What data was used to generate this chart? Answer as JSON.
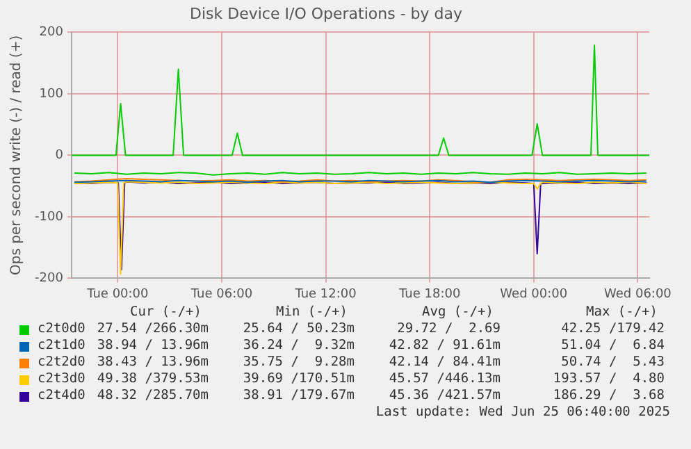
{
  "chart_data": {
    "type": "line",
    "title": "Disk Device I/O Operations - by day",
    "ylabel": "Ops per second write (-) / read (+)",
    "x": [
      "2025-06-23T21:30",
      "2025-06-23T22:30",
      "2025-06-23T23:30",
      "2025-06-24T00:30",
      "2025-06-24T01:30",
      "2025-06-24T02:30",
      "2025-06-24T03:30",
      "2025-06-24T04:30",
      "2025-06-24T05:30",
      "2025-06-24T06:30",
      "2025-06-24T07:30",
      "2025-06-24T08:30",
      "2025-06-24T09:30",
      "2025-06-24T10:30",
      "2025-06-24T11:30",
      "2025-06-24T12:30",
      "2025-06-24T13:30",
      "2025-06-24T14:30",
      "2025-06-24T15:30",
      "2025-06-24T16:30",
      "2025-06-24T17:30",
      "2025-06-24T18:30",
      "2025-06-24T19:30",
      "2025-06-24T20:30",
      "2025-06-24T21:30",
      "2025-06-24T22:30",
      "2025-06-24T23:30",
      "2025-06-25T00:30",
      "2025-06-25T01:30",
      "2025-06-25T02:30",
      "2025-06-25T03:30",
      "2025-06-25T04:30",
      "2025-06-25T05:30",
      "2025-06-25T06:30"
    ],
    "xlim": [
      "2025-06-23T21:20",
      "2025-06-25T06:40"
    ],
    "xticks": [
      {
        "value": "2025-06-24T00:00",
        "label": "Tue 00:00"
      },
      {
        "value": "2025-06-24T06:00",
        "label": "Tue 06:00"
      },
      {
        "value": "2025-06-24T12:00",
        "label": "Tue 12:00"
      },
      {
        "value": "2025-06-24T18:00",
        "label": "Tue 18:00"
      },
      {
        "value": "2025-06-25T00:00",
        "label": "Wed 00:00"
      },
      {
        "value": "2025-06-25T06:00",
        "label": "Wed 06:00"
      }
    ],
    "ylim": [
      -200,
      200
    ],
    "yticks": [
      -200,
      -100,
      0,
      100,
      200
    ],
    "grid": true,
    "legend": "bottom",
    "series": [
      {
        "name": "c2t0d0",
        "color": "#00cc00",
        "values": [
          -29,
          -30,
          -28,
          -31,
          -29,
          -30,
          -28,
          -29,
          -32,
          -30,
          -29,
          -31,
          -28,
          -30,
          -29,
          -31,
          -30,
          -28,
          -30,
          -29,
          -31,
          -29,
          -30,
          -28,
          -30,
          -31,
          -29,
          -30,
          -28,
          -31,
          -30,
          -29,
          -30,
          -29
        ]
      },
      {
        "name": "c2t1d0",
        "color": "#0066b3",
        "values": [
          -44,
          -43,
          -42,
          -41,
          -42,
          -43,
          -41,
          -42,
          -43,
          -42,
          -44,
          -42,
          -41,
          -43,
          -42,
          -42,
          -43,
          -41,
          -42,
          -43,
          -42,
          -41,
          -43,
          -42,
          -44,
          -42,
          -41,
          -42,
          -43,
          -42,
          -41,
          -42,
          -43,
          -42
        ]
      },
      {
        "name": "c2t2d0",
        "color": "#ff8000",
        "values": [
          -43,
          -42,
          -40,
          -38,
          -39,
          -40,
          -41,
          -42,
          -41,
          -40,
          -42,
          -41,
          -43,
          -42,
          -40,
          -42,
          -41,
          -43,
          -42,
          -41,
          -42,
          -40,
          -41,
          -43,
          -44,
          -40,
          -39,
          -40,
          -41,
          -40,
          -39,
          -40,
          -41,
          -40
        ]
      },
      {
        "name": "c2t3d0",
        "color": "#ffcc00",
        "x": [
          "2025-06-23T21:30",
          "2025-06-23T22:30",
          "2025-06-23T23:30",
          "2025-06-24T00:00",
          "2025-06-24T00:10",
          "2025-06-24T00:21",
          "2025-06-24T00:30",
          "2025-06-24T01:30",
          "2025-06-24T02:30",
          "2025-06-24T03:30",
          "2025-06-24T04:30",
          "2025-06-24T05:30",
          "2025-06-24T06:30",
          "2025-06-24T07:30",
          "2025-06-24T08:30",
          "2025-06-24T09:30",
          "2025-06-24T10:30",
          "2025-06-24T11:30",
          "2025-06-24T12:30",
          "2025-06-24T13:30",
          "2025-06-24T14:30",
          "2025-06-24T15:30",
          "2025-06-24T16:30",
          "2025-06-24T17:30",
          "2025-06-24T18:30",
          "2025-06-24T19:30",
          "2025-06-24T20:30",
          "2025-06-24T21:30",
          "2025-06-24T22:30",
          "2025-06-24T23:30",
          "2025-06-25T00:00",
          "2025-06-25T00:12",
          "2025-06-25T00:24",
          "2025-06-25T00:30",
          "2025-06-25T01:30",
          "2025-06-25T02:30",
          "2025-06-25T03:30",
          "2025-06-25T04:30",
          "2025-06-25T05:30",
          "2025-06-25T06:30"
        ],
        "values": [
          -46,
          -45,
          -44,
          -45,
          -193,
          -45,
          -43,
          -44,
          -45,
          -44,
          -46,
          -45,
          -44,
          -45,
          -46,
          -44,
          -45,
          -44,
          -46,
          -45,
          -44,
          -46,
          -45,
          -44,
          -45,
          -46,
          -45,
          -44,
          -45,
          -46,
          -46,
          -55,
          -46,
          -44,
          -45,
          -46,
          -44,
          -45,
          -44,
          -46
        ]
      },
      {
        "name": "c2t4d0",
        "color": "#330099",
        "x": [
          "2025-06-23T21:30",
          "2025-06-23T22:30",
          "2025-06-23T23:30",
          "2025-06-24T00:02",
          "2025-06-24T00:13",
          "2025-06-24T00:24",
          "2025-06-24T00:30",
          "2025-06-24T01:30",
          "2025-06-24T02:30",
          "2025-06-24T03:30",
          "2025-06-24T04:30",
          "2025-06-24T05:30",
          "2025-06-24T06:30",
          "2025-06-24T07:30",
          "2025-06-24T08:30",
          "2025-06-24T09:30",
          "2025-06-24T10:30",
          "2025-06-24T11:30",
          "2025-06-24T12:30",
          "2025-06-24T13:30",
          "2025-06-24T14:30",
          "2025-06-24T15:30",
          "2025-06-24T16:30",
          "2025-06-24T17:30",
          "2025-06-24T18:30",
          "2025-06-24T19:30",
          "2025-06-24T20:30",
          "2025-06-24T21:30",
          "2025-06-24T22:30",
          "2025-06-24T23:30",
          "2025-06-25T00:00",
          "2025-06-25T00:12",
          "2025-06-25T00:24",
          "2025-06-25T00:30",
          "2025-06-25T01:30",
          "2025-06-25T02:30",
          "2025-06-25T03:30",
          "2025-06-25T04:30",
          "2025-06-25T05:30",
          "2025-06-25T06:30"
        ],
        "values": [
          -45,
          -46,
          -44,
          -45,
          -186,
          -45,
          -43,
          -45,
          -44,
          -46,
          -45,
          -44,
          -46,
          -45,
          -44,
          -46,
          -45,
          -44,
          -46,
          -45,
          -45,
          -44,
          -46,
          -45,
          -44,
          -46,
          -45,
          -46,
          -44,
          -45,
          -46,
          -160,
          -46,
          -46,
          -45,
          -44,
          -46,
          -45,
          -46,
          -45
        ]
      },
      {
        "color": "#00cc00",
        "x": [
          "2025-06-23T21:20",
          "2025-06-23T23:54",
          "2025-06-24T00:10",
          "2025-06-24T00:27",
          "2025-06-24T03:12",
          "2025-06-24T03:30",
          "2025-06-24T03:48",
          "2025-06-24T06:36",
          "2025-06-24T06:54",
          "2025-06-24T07:12",
          "2025-06-24T18:30",
          "2025-06-24T18:48",
          "2025-06-24T19:06",
          "2025-06-24T23:54",
          "2025-06-25T00:12",
          "2025-06-25T00:30",
          "2025-06-25T03:18",
          "2025-06-25T03:30",
          "2025-06-25T03:42",
          "2025-06-25T06:40"
        ],
        "values": [
          0,
          0,
          84,
          0,
          0,
          140,
          0,
          0,
          36,
          0,
          0,
          28,
          0,
          0,
          51,
          0,
          0,
          179,
          0,
          0
        ]
      }
    ],
    "annotations": [
      "Cur (-/+)",
      "Min (-/+)",
      "Avg (-/+)",
      "Max (-/+)",
      "27.54 /266.30m",
      "25.64 / 50.23m",
      "29.72 /  2.69",
      "42.25 /179.42",
      "38.94 / 13.96m",
      "36.24 /  9.32m",
      "42.82 / 91.61m",
      "51.04 /  6.84",
      "38.43 / 13.96m",
      "35.75 /  9.28m",
      "42.14 / 84.41m",
      "50.74 /  5.43",
      "49.38 /379.53m",
      "39.69 /170.51m",
      "45.57 /446.13m",
      "193.57 /  4.80",
      "48.32 /285.70m",
      "38.91 /179.67m",
      "45.36 /421.57m",
      "186.29 /  3.68",
      "Last update: Wed Jun 25 06:40:00 2025"
    ]
  }
}
